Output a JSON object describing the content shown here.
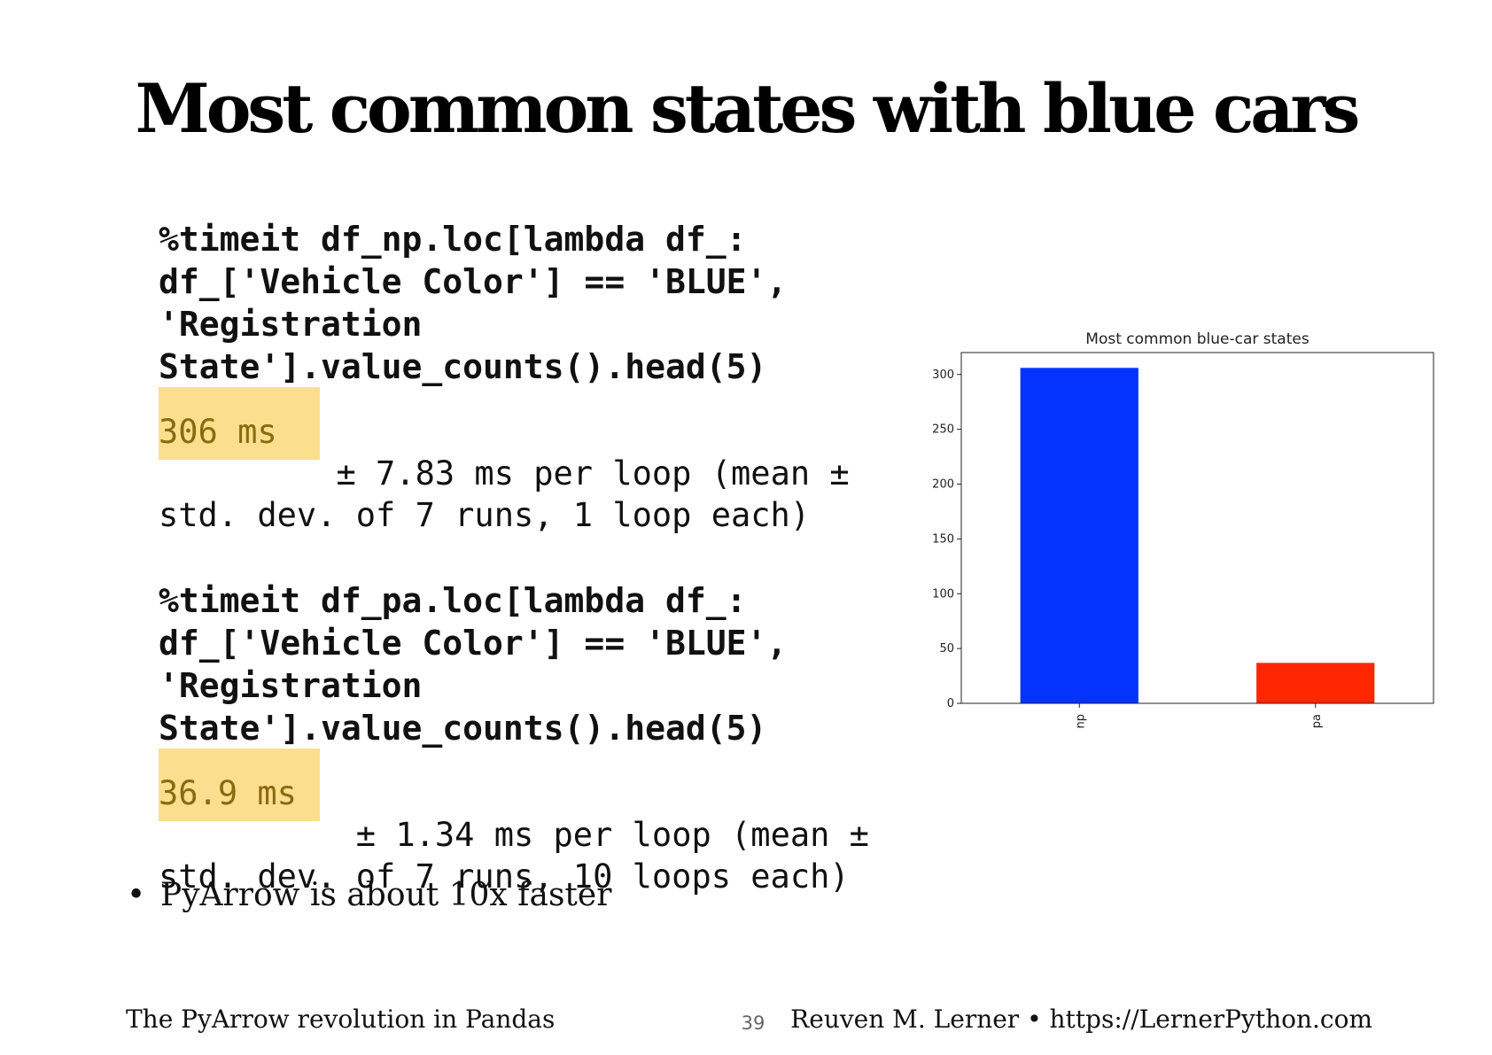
{
  "slide": {
    "title": "Most common states with blue cars",
    "bullet": "PyArrow is about 10x faster",
    "bullet_marker": "•"
  },
  "blocks": [
    {
      "code": "%timeit df_np.loc[lambda df_:\ndf_['Vehicle Color'] == 'BLUE',\n'Registration\nState'].value_counts().head(5)",
      "highlight": "306 ms",
      "result_rest": " ± 7.83 ms per loop (mean ±\nstd. dev. of 7 runs, 1 loop each)"
    },
    {
      "code": "%timeit df_pa.loc[lambda df_:\ndf_['Vehicle Color'] == 'BLUE',\n'Registration\nState'].value_counts().head(5)",
      "highlight": "36.9 ms",
      "result_rest": " ± 1.34 ms per loop (mean ±\nstd. dev. of 7 runs, 10 loops each)"
    }
  ],
  "footer": {
    "left": "The PyArrow revolution in Pandas",
    "page": "39",
    "right": "Reuven M. Lerner • https://LernerPython.com"
  },
  "colors": {
    "highlight": "#fbdf8f",
    "bar_np": "#0433ff",
    "bar_pa": "#ff2600"
  },
  "chart_data": {
    "type": "bar",
    "title": "Most common blue-car states",
    "categories": [
      "np",
      "pa"
    ],
    "values": [
      306,
      36.9
    ],
    "bar_colors": [
      "#0433ff",
      "#ff2600"
    ],
    "xlabel": "",
    "ylabel": "",
    "ylim": [
      0,
      320
    ],
    "yticks": [
      0,
      50,
      100,
      150,
      200,
      250,
      300
    ],
    "grid": false,
    "legend": "none"
  }
}
